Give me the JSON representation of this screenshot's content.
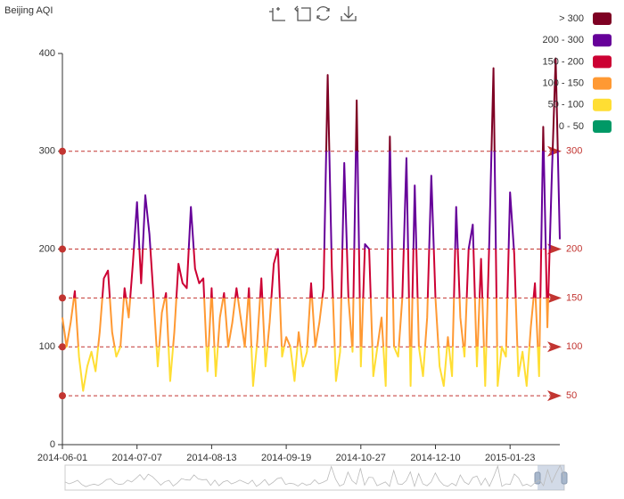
{
  "chart_data": {
    "type": "line",
    "title": "Beijing AQI",
    "categories": [
      "2014-06-01",
      null,
      null,
      null,
      null,
      null,
      null,
      null,
      null,
      null,
      null,
      null,
      null,
      null,
      null,
      null,
      null,
      null,
      "2014-07-07",
      null,
      null,
      null,
      null,
      null,
      null,
      null,
      null,
      null,
      null,
      null,
      null,
      null,
      null,
      null,
      null,
      null,
      "2014-08-13",
      null,
      null,
      null,
      null,
      null,
      null,
      null,
      null,
      null,
      null,
      null,
      null,
      null,
      null,
      null,
      null,
      null,
      "2014-09-19",
      null,
      null,
      null,
      null,
      null,
      null,
      null,
      null,
      null,
      null,
      null,
      null,
      null,
      null,
      null,
      null,
      null,
      "2014-10-27",
      null,
      null,
      null,
      null,
      null,
      null,
      null,
      null,
      null,
      null,
      null,
      null,
      null,
      null,
      null,
      null,
      null,
      "2014-12-10",
      null,
      null,
      null,
      null,
      null,
      null,
      null,
      null,
      null,
      null,
      null,
      null,
      null,
      null,
      null,
      null,
      null,
      "2015-01-23",
      null,
      null,
      null,
      null,
      null,
      null,
      null,
      null,
      null,
      null,
      null,
      null
    ],
    "values": [
      130,
      100,
      125,
      157,
      90,
      55,
      80,
      95,
      75,
      115,
      170,
      178,
      115,
      90,
      100,
      160,
      130,
      185,
      248,
      165,
      255,
      215,
      150,
      80,
      135,
      155,
      65,
      115,
      185,
      165,
      160,
      243,
      180,
      165,
      170,
      75,
      160,
      70,
      130,
      155,
      100,
      125,
      160,
      130,
      100,
      160,
      60,
      105,
      170,
      80,
      125,
      185,
      200,
      90,
      110,
      100,
      65,
      115,
      80,
      95,
      165,
      100,
      125,
      160,
      378,
      180,
      65,
      95,
      288,
      150,
      95,
      352,
      80,
      205,
      200,
      70,
      100,
      130,
      60,
      315,
      100,
      90,
      150,
      293,
      60,
      265,
      100,
      70,
      130,
      275,
      150,
      80,
      60,
      110,
      70,
      243,
      130,
      90,
      200,
      225,
      80,
      190,
      60,
      210,
      385,
      60,
      100,
      90,
      258,
      195,
      70,
      95,
      60,
      120,
      165,
      70,
      325,
      120,
      265,
      395,
      210
    ],
    "ylim": [
      0,
      400
    ],
    "yticks": [
      0,
      100,
      200,
      300,
      400
    ],
    "mark_lines": [
      50,
      100,
      150,
      200,
      300
    ],
    "visual_map": [
      {
        "label": "> 300",
        "gt": 300,
        "color": "#7e0023"
      },
      {
        "label": "200 - 300",
        "gt": 200,
        "lte": 300,
        "color": "#660099"
      },
      {
        "label": "150 - 200",
        "gt": 150,
        "lte": 200,
        "color": "#cc0033"
      },
      {
        "label": "100 - 150",
        "gt": 100,
        "lte": 150,
        "color": "#ff9933"
      },
      {
        "label": "50 - 100",
        "gt": 50,
        "lte": 100,
        "color": "#ffde33"
      },
      {
        "label": "0 - 50",
        "gt": 0,
        "lte": 50,
        "color": "#009966"
      }
    ],
    "mark_line_color": "#c23531"
  }
}
